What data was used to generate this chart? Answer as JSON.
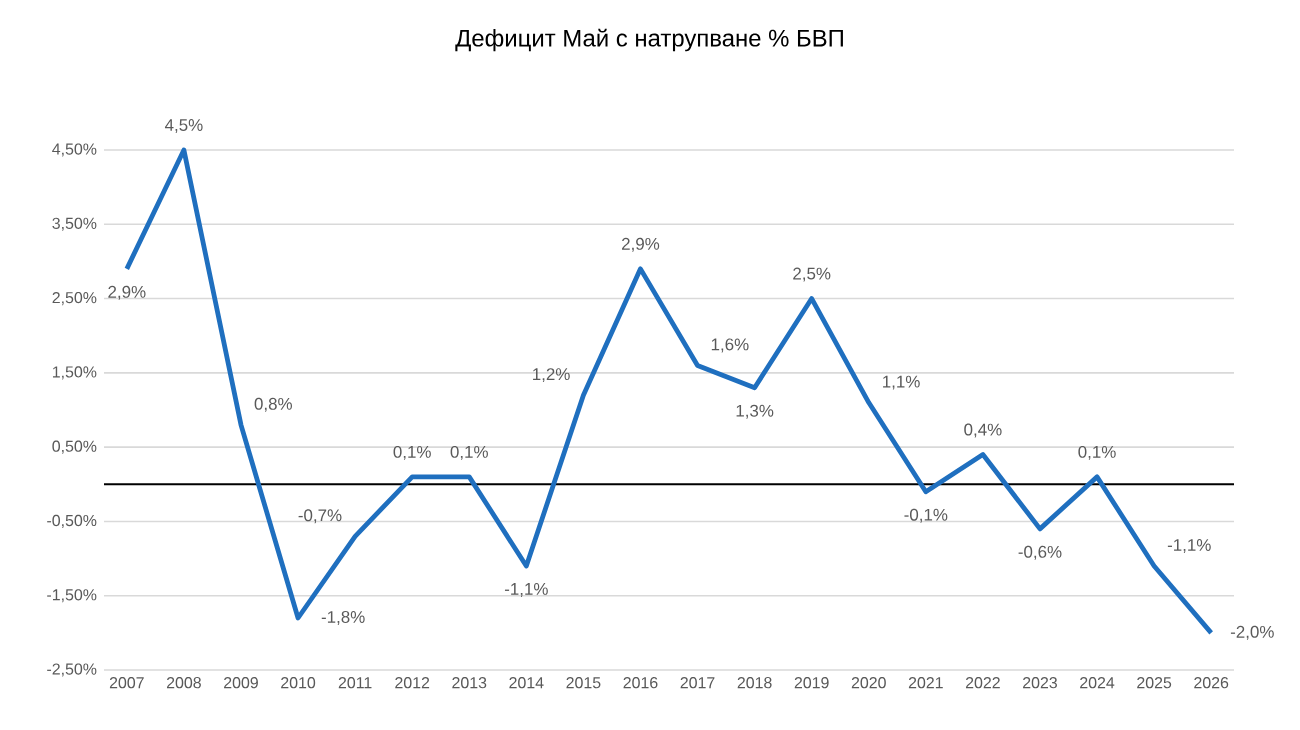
{
  "chart_data": {
    "type": "line",
    "title": "Дефицит Май с натрупване % БВП",
    "categories": [
      "2007",
      "2008",
      "2009",
      "2010",
      "2011",
      "2012",
      "2013",
      "2014",
      "2015",
      "2016",
      "2017",
      "2018",
      "2019",
      "2020",
      "2021",
      "2022",
      "2023",
      "2024",
      "2025",
      "2026"
    ],
    "series": [
      {
        "color": "#1f6fbf",
        "values": [
          2.9,
          4.5,
          0.8,
          -1.8,
          -0.7,
          0.1,
          0.1,
          -1.1,
          1.2,
          2.9,
          1.6,
          1.3,
          2.5,
          1.1,
          -0.1,
          0.4,
          -0.6,
          0.1,
          -1.1,
          -2.0
        ],
        "value_labels": [
          "2,9%",
          "4,5%",
          "0,8%",
          "-1,8%",
          "-0,7%",
          "0,1%",
          "0,1%",
          "-1,1%",
          "1,2%",
          "2,9%",
          "1,6%",
          "1,3%",
          "2,5%",
          "1,1%",
          "-0,1%",
          "0,4%",
          "-0,6%",
          "0,1%",
          "-1,1%",
          "-2,0%"
        ]
      }
    ],
    "ylim": [
      -2.5,
      4.5
    ],
    "yticks": [
      {
        "value": -2.5,
        "label": "-2,50%"
      },
      {
        "value": -1.5,
        "label": "-1,50%"
      },
      {
        "value": -0.5,
        "label": "-0,50%"
      },
      {
        "value": 0.5,
        "label": "0,50%"
      },
      {
        "value": 1.5,
        "label": "1,50%"
      },
      {
        "value": 2.5,
        "label": "2,50%"
      },
      {
        "value": 3.5,
        "label": "3,50%"
      },
      {
        "value": 4.5,
        "label": "4,50%"
      }
    ],
    "ref_lines": [
      {
        "axis": "y",
        "value": 0,
        "color": "#000000"
      }
    ],
    "grid": "y",
    "marker": "none",
    "line_style": "solid"
  }
}
